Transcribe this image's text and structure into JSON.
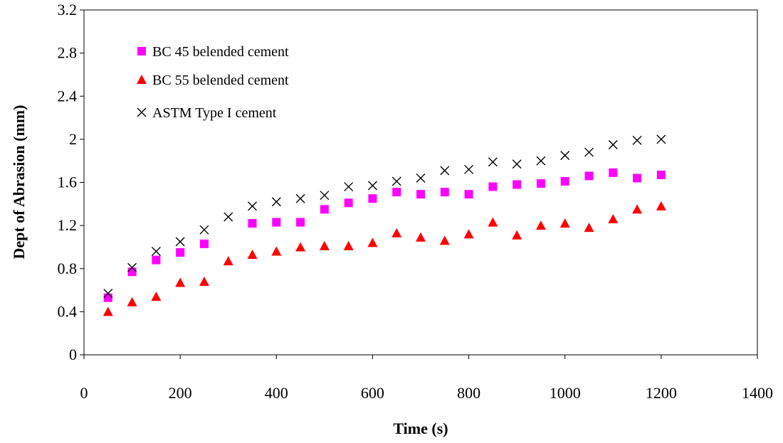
{
  "chart_data": {
    "type": "scatter",
    "title": "",
    "xlabel": "Time (s)",
    "ylabel": "Dept of Abrasion (mm)",
    "xlim": [
      0,
      1400
    ],
    "ylim": [
      0,
      3.2
    ],
    "x_ticks": [
      "0",
      "200",
      "400",
      "600",
      "800",
      "1000",
      "1200",
      "1400"
    ],
    "y_ticks": [
      "0",
      "0.4",
      "0.8",
      "1.2",
      "1.6",
      "2",
      "2.4",
      "2.8",
      "3.2"
    ],
    "grid": false,
    "legend_position": "top-left",
    "x": [
      50,
      100,
      150,
      200,
      250,
      300,
      350,
      400,
      450,
      500,
      550,
      600,
      650,
      700,
      750,
      800,
      850,
      900,
      950,
      1000,
      1050,
      1100,
      1150,
      1200
    ],
    "series": [
      {
        "name": "BC 45 belended cement",
        "marker": "square",
        "color": "#FF00FF",
        "x": [
          50,
          100,
          150,
          200,
          250,
          350,
          400,
          450,
          500,
          550,
          600,
          650,
          700,
          750,
          800,
          850,
          900,
          950,
          1000,
          1050,
          1100,
          1150,
          1200
        ],
        "values": [
          0.53,
          0.77,
          0.88,
          0.95,
          1.03,
          1.22,
          1.23,
          1.23,
          1.35,
          1.41,
          1.45,
          1.51,
          1.49,
          1.51,
          1.49,
          1.56,
          1.58,
          1.59,
          1.61,
          1.66,
          1.69,
          1.64,
          1.67
        ]
      },
      {
        "name": "BC 55 belended cement",
        "marker": "triangle",
        "color": "#FF0000",
        "x": [
          50,
          100,
          150,
          200,
          250,
          300,
          350,
          400,
          450,
          500,
          550,
          600,
          650,
          700,
          750,
          800,
          850,
          900,
          950,
          1000,
          1050,
          1100,
          1150,
          1200
        ],
        "values": [
          0.4,
          0.49,
          0.54,
          0.67,
          0.68,
          0.87,
          0.93,
          0.96,
          1.0,
          1.01,
          1.01,
          1.04,
          1.13,
          1.09,
          1.06,
          1.12,
          1.23,
          1.11,
          1.2,
          1.22,
          1.18,
          1.26,
          1.35,
          1.38
        ]
      },
      {
        "name": "ASTM Type I cement",
        "marker": "x",
        "color": "#000000",
        "x": [
          50,
          100,
          150,
          200,
          250,
          300,
          350,
          400,
          450,
          500,
          550,
          600,
          650,
          700,
          750,
          800,
          850,
          900,
          950,
          1000,
          1050,
          1100,
          1150,
          1200
        ],
        "values": [
          0.57,
          0.81,
          0.96,
          1.05,
          1.16,
          1.28,
          1.38,
          1.42,
          1.45,
          1.48,
          1.56,
          1.57,
          1.61,
          1.64,
          1.71,
          1.72,
          1.79,
          1.77,
          1.8,
          1.85,
          1.88,
          1.95,
          1.99,
          2.0
        ]
      }
    ]
  }
}
